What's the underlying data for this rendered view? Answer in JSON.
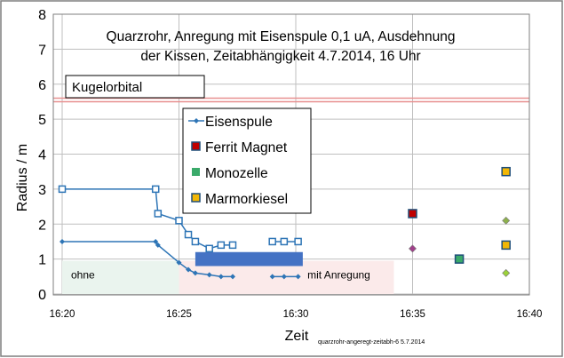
{
  "chart_data": {
    "type": "scatter",
    "title_lines": [
      "Quarzrohr, Anregung mit Eisenspule 0,1 uA,  Ausdehnung",
      "der Kissen, Zeitabhängigkeit 4.7.2014, 16 Uhr"
    ],
    "xlabel": "Zeit",
    "ylabel": "Radius / m",
    "xlim": [
      "16:20",
      "16:40"
    ],
    "ylim": [
      0,
      8
    ],
    "y_ticks": [
      "0",
      "1",
      "2",
      "3",
      "4",
      "5",
      "6",
      "7",
      "8"
    ],
    "x_ticks": [
      "16:20",
      "16:25",
      "16:30",
      "16:35",
      "16:40"
    ],
    "grid": true,
    "legend_position": "center",
    "reference_line": {
      "label": "Kugelorbital",
      "y": 5.55,
      "color": "#e89090"
    },
    "regions": [
      {
        "label": "ohne",
        "x_start": "16:20",
        "x_end": "16:25",
        "y_start": 0,
        "y_end": 0.95,
        "color": "#eaf4ee"
      },
      {
        "label": "mit   Anregung",
        "x_start": "16:25",
        "x_end": "16:34.2",
        "y_start": 0,
        "y_end": 0.95,
        "color": "#fbeaea"
      }
    ],
    "bar": {
      "x_start": "16:25.7",
      "x_end": "16:30.3",
      "y_start": 0.8,
      "y_end": 1.2,
      "color": "#4472c4"
    },
    "series": [
      {
        "name": "Eisenspule",
        "color": "#2e75b6",
        "marker": "diamond",
        "segments": [
          [
            [
              "16:20",
              1.5
            ],
            [
              "16:24",
              1.5
            ],
            [
              "16:24.1",
              1.4
            ],
            [
              "16:25",
              0.9
            ],
            [
              "16:25.4",
              0.7
            ],
            [
              "16:25.7",
              0.6
            ],
            [
              "16:26.3",
              0.55
            ],
            [
              "16:26.8",
              0.5
            ],
            [
              "16:27.3",
              0.5
            ]
          ],
          [
            [
              "16:29",
              0.5
            ],
            [
              "16:29.5",
              0.5
            ],
            [
              "16:30.1",
              0.5
            ]
          ]
        ]
      },
      {
        "name": "",
        "color": "#2e75b6",
        "marker": "open-square",
        "segments": [
          [
            [
              "16:20",
              3.0
            ],
            [
              "16:24",
              3.0
            ],
            [
              "16:24.1",
              2.3
            ],
            [
              "16:25",
              2.1
            ],
            [
              "16:25.4",
              1.7
            ],
            [
              "16:25.7",
              1.5
            ],
            [
              "16:26.3",
              1.3
            ],
            [
              "16:26.8",
              1.4
            ],
            [
              "16:27.3",
              1.4
            ]
          ],
          [
            [
              "16:29",
              1.5
            ],
            [
              "16:29.5",
              1.5
            ],
            [
              "16:30.1",
              1.5
            ]
          ]
        ]
      },
      {
        "name": "Ferrit Magnet",
        "color": "#c00000",
        "marker": "square",
        "points": [
          [
            "16:35",
            2.3
          ],
          [
            "16:35",
            1.3
          ]
        ]
      },
      {
        "name": "Monozelle",
        "color": "#3aaa6a",
        "marker": "square",
        "points": [
          [
            "16:37",
            1.0
          ]
        ]
      },
      {
        "name": "Marmorkiesel",
        "color": "#f2b705",
        "marker": "square",
        "points": [
          [
            "16:39",
            3.5
          ],
          [
            "16:39",
            2.1
          ],
          [
            "16:39",
            1.4
          ],
          [
            "16:39",
            0.6
          ]
        ]
      }
    ],
    "footnote": "quarzrohr-angeregt-zeitabh-6  5.7.2014"
  }
}
